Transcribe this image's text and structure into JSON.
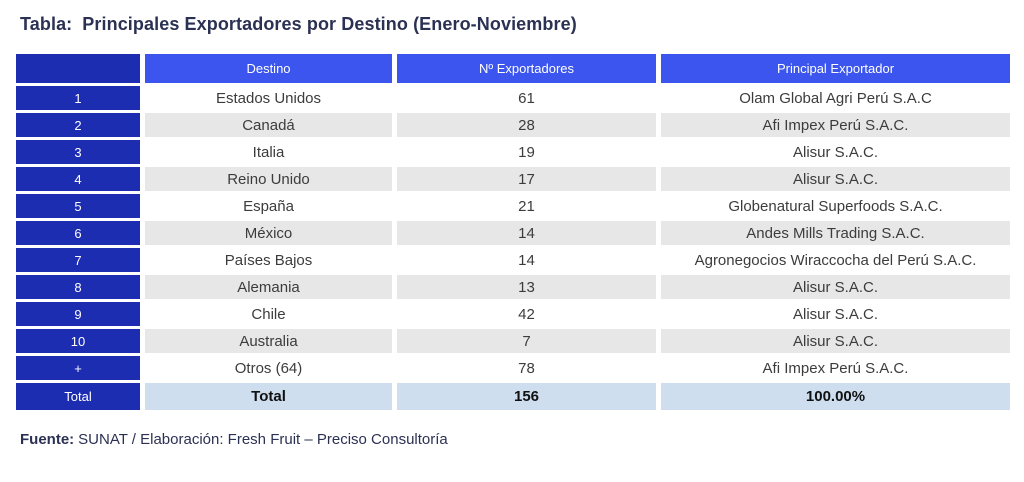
{
  "title": {
    "prefix": "Tabla:",
    "text": "Principales Exportadores por Destino (Enero-Noviembre)"
  },
  "chart_data": {
    "type": "table",
    "title": "Tabla: Principales Exportadores por Destino (Enero-Noviembre)",
    "columns": [
      "",
      "Destino",
      "Nº Exportadores",
      "Principal Exportador"
    ],
    "rows": [
      {
        "rank": "1",
        "destino": "Estados Unidos",
        "exportadores": "61",
        "principal": "Olam Global Agri Perú S.A.C"
      },
      {
        "rank": "2",
        "destino": "Canadá",
        "exportadores": "28",
        "principal": "Afi Impex Perú S.A.C."
      },
      {
        "rank": "3",
        "destino": "Italia",
        "exportadores": "19",
        "principal": "Alisur S.A.C."
      },
      {
        "rank": "4",
        "destino": "Reino Unido",
        "exportadores": "17",
        "principal": "Alisur S.A.C."
      },
      {
        "rank": "5",
        "destino": "España",
        "exportadores": "21",
        "principal": "Globenatural Superfoods S.A.C."
      },
      {
        "rank": "6",
        "destino": "México",
        "exportadores": "14",
        "principal": "Andes Mills Trading S.A.C."
      },
      {
        "rank": "7",
        "destino": "Países Bajos",
        "exportadores": "14",
        "principal": "Agronegocios Wiraccocha del Perú S.A.C."
      },
      {
        "rank": "8",
        "destino": "Alemania",
        "exportadores": "13",
        "principal": "Alisur S.A.C."
      },
      {
        "rank": "9",
        "destino": "Chile",
        "exportadores": "42",
        "principal": "Alisur S.A.C."
      },
      {
        "rank": "10",
        "destino": "Australia",
        "exportadores": "7",
        "principal": "Alisur S.A.C."
      },
      {
        "rank": "+",
        "destino": "Otros (64)",
        "exportadores": "78",
        "principal": "Afi Impex Perú S.A.C."
      }
    ],
    "total_row": {
      "rank": "Total",
      "destino": "Total",
      "exportadores": "156",
      "principal": "100.00%"
    }
  },
  "footer": {
    "prefix": "Fuente:",
    "text": "SUNAT / Elaboración: Fresh Fruit – Preciso Consultoría"
  },
  "colors": {
    "header_blue": "#3b55ee",
    "index_blue": "#1d2db2",
    "row_gray": "#e7e7e7",
    "total_row_bg": "#cedeef",
    "title_navy": "#2b3153",
    "body_text": "#3c3c3c"
  }
}
